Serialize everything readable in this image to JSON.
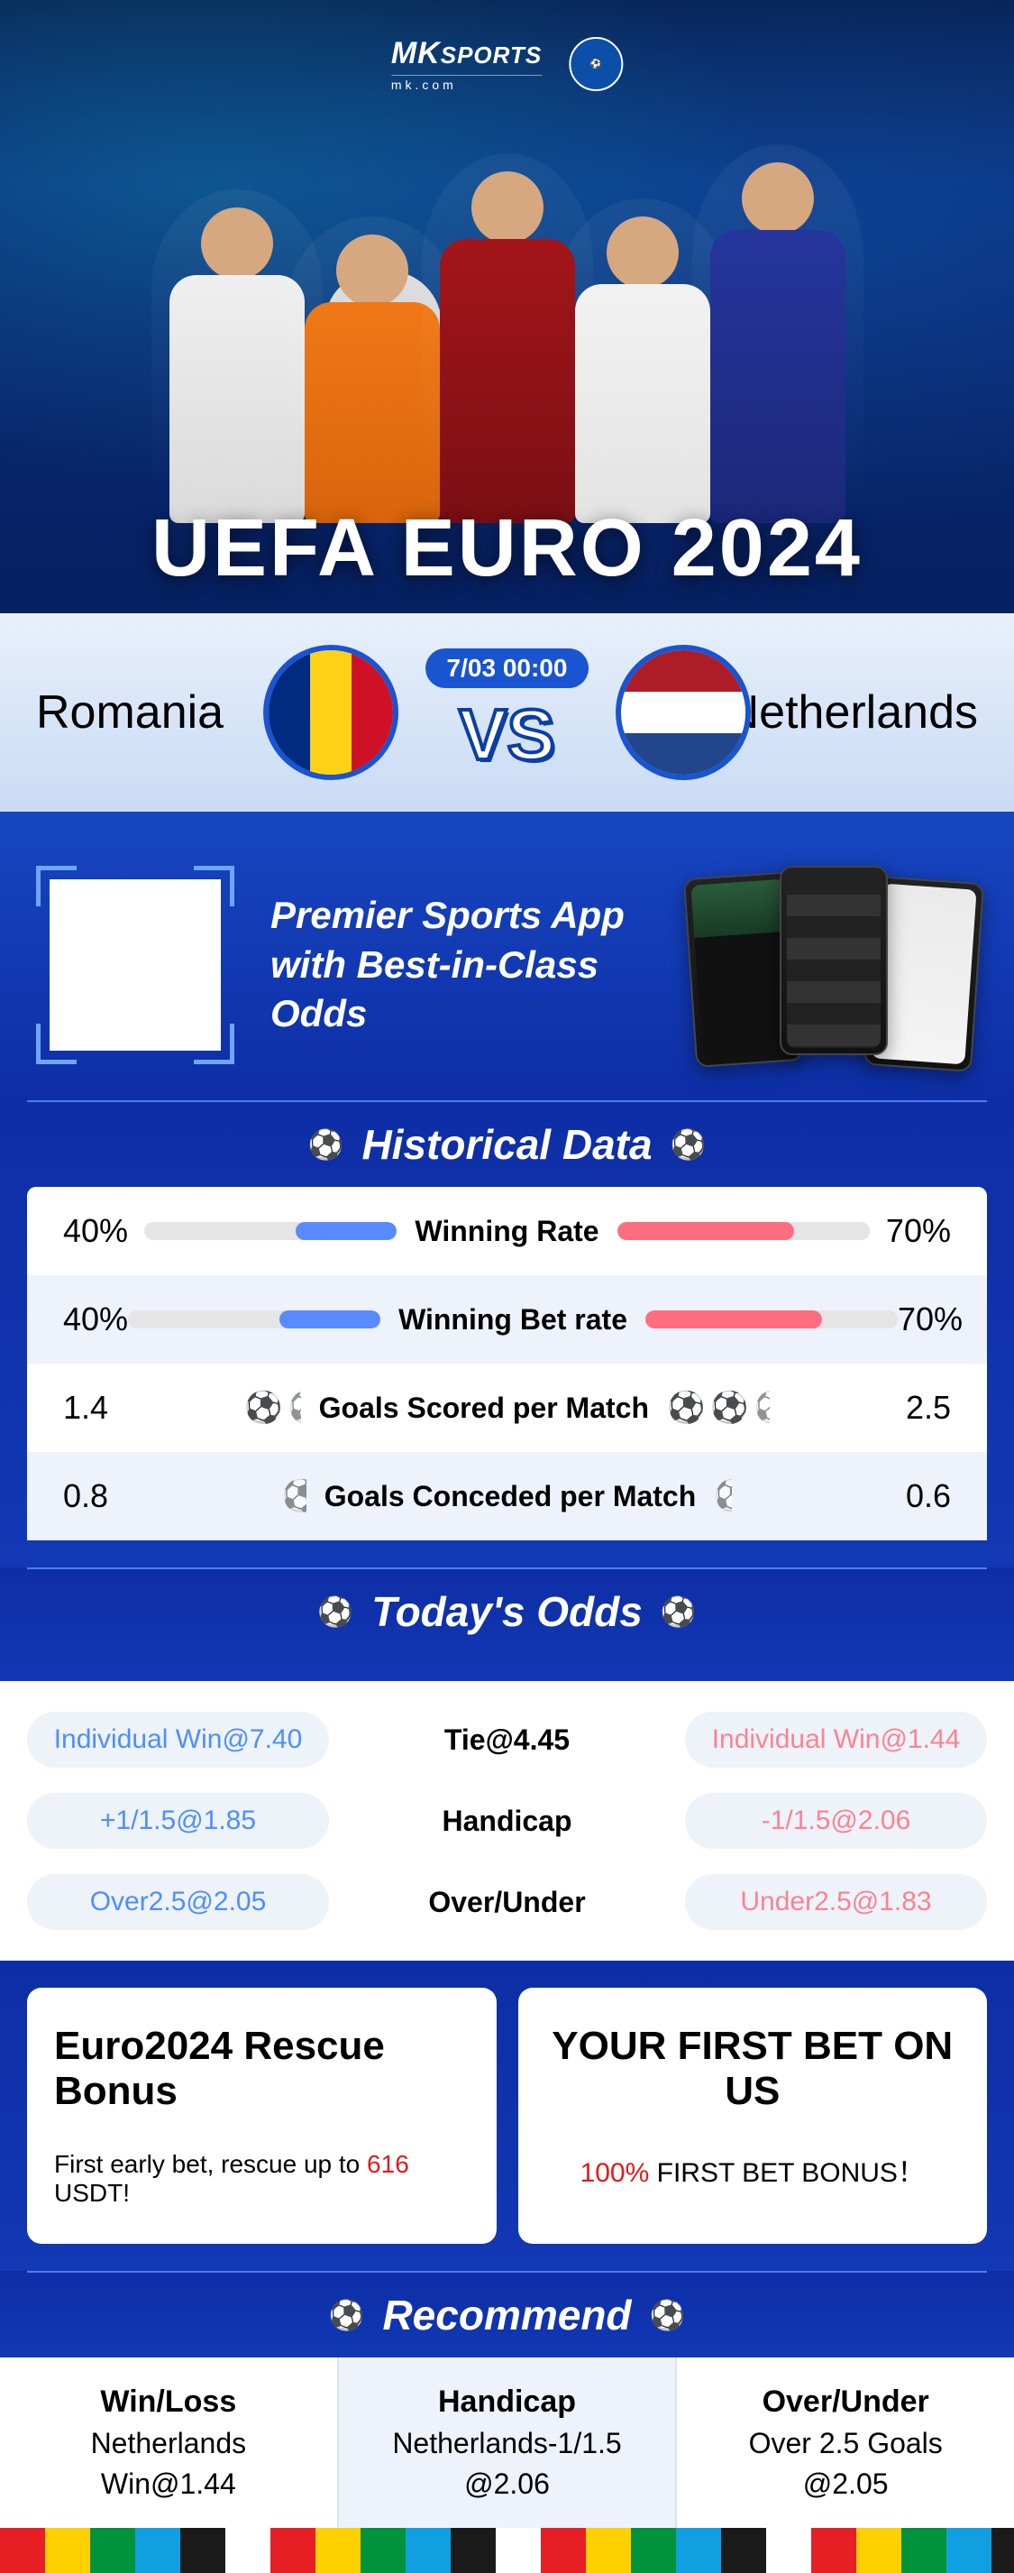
{
  "brand": {
    "name": "MK",
    "subline": "mk.com",
    "topword": "SPORTS"
  },
  "hero": {
    "title": "UEFA EURO 2024"
  },
  "match": {
    "team_a": "Romania",
    "team_b": "Netherlands",
    "datetime": "7/03 00:00",
    "vs": "VS",
    "flag_a_colors": [
      "#002B7F",
      "#FCD116",
      "#CE1126"
    ],
    "flag_b_colors": [
      "#AE1C28",
      "#FFFFFF",
      "#21468B"
    ]
  },
  "promo": {
    "line1": "Premier Sports App",
    "line2": "with Best-in-Class Odds"
  },
  "historical": {
    "title": "Historical Data",
    "rows": [
      {
        "label": "Winning Rate",
        "left_value": "40%",
        "right_value": "70%",
        "left_pct": 40,
        "right_pct": 70,
        "type": "bar"
      },
      {
        "label": "Winning Bet rate",
        "left_value": "40%",
        "right_value": "70%",
        "left_pct": 40,
        "right_pct": 70,
        "type": "bar"
      },
      {
        "label": "Goals Scored per Match",
        "left_value": "1.4",
        "right_value": "2.5",
        "left_balls": 1.4,
        "right_balls": 2.5,
        "type": "balls"
      },
      {
        "label": "Goals Conceded per Match",
        "left_value": "0.8",
        "right_value": "0.6",
        "left_balls": 0.8,
        "right_balls": 0.6,
        "type": "balls"
      }
    ],
    "bar_left_color": "#5a8aff",
    "bar_right_color": "#ff6d7f",
    "track_color": "#e5e5e5"
  },
  "odds": {
    "title": "Today's Odds",
    "rows": [
      {
        "left": "Individual Win@7.40",
        "mid": "Tie@4.45",
        "right": "Individual Win@1.44"
      },
      {
        "left": "+1/1.5@1.85",
        "mid": "Handicap",
        "right": "-1/1.5@2.06"
      },
      {
        "left": "Over2.5@2.05",
        "mid": "Over/Under",
        "right": "Under2.5@1.83"
      }
    ],
    "pill_left_color": "#4d8fff",
    "pill_right_color": "#fb8392",
    "pill_bg": "#eef2f9"
  },
  "bonus": {
    "cards": [
      {
        "title": "Euro2024 Rescue Bonus",
        "sub_pre": "First early bet, rescue up to ",
        "sub_em": "616",
        "sub_post": " USDT!"
      },
      {
        "title": "YOUR FIRST BET ON US",
        "sub_pre": "",
        "sub_em": "100%",
        "sub_post": " FIRST BET BONUS！"
      }
    ]
  },
  "recommend": {
    "title": "Recommend",
    "cols": [
      {
        "head": "Win/Loss",
        "value": "Netherlands",
        "odd": "Win@1.44"
      },
      {
        "head": "Handicap",
        "value": "Netherlands-1/1.5",
        "odd": "@2.06"
      },
      {
        "head": "Over/Under",
        "value": "Over 2.5 Goals",
        "odd": "@2.05"
      }
    ]
  },
  "colors": {
    "bg_primary": "#0d2ea5",
    "accent_blue": "#1954d1",
    "text_white": "#ffffff"
  }
}
